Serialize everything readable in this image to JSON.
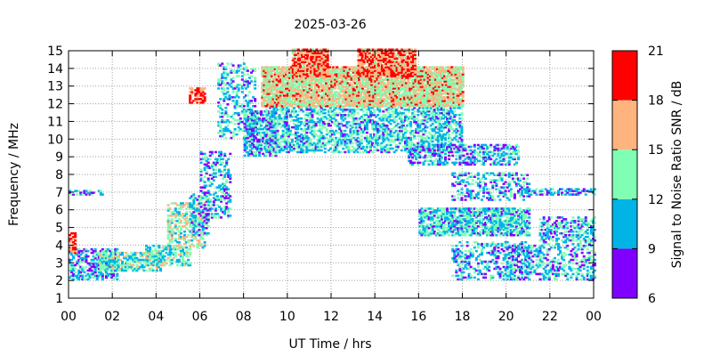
{
  "chart_data": {
    "type": "heatmap",
    "title": "2025-03-26",
    "xlabel": "UT Time / hrs",
    "ylabel": "Frequency / MHz",
    "xlim": [
      0,
      24
    ],
    "ylim": [
      1,
      15
    ],
    "x_ticks": [
      "00",
      "02",
      "04",
      "06",
      "08",
      "10",
      "12",
      "14",
      "16",
      "18",
      "20",
      "22",
      "00"
    ],
    "y_ticks": [
      "1",
      "2",
      "3",
      "4",
      "5",
      "6",
      "7",
      "8",
      "9",
      "10",
      "11",
      "12",
      "13",
      "14",
      "15"
    ],
    "grid": true,
    "colorbar": {
      "label": "Signal to Noise Ratio SNR / dB",
      "ticks": [
        "6",
        "9",
        "12",
        "15",
        "18",
        "21"
      ],
      "bands": [
        {
          "min": 6,
          "max": 9,
          "color": "#8000ff"
        },
        {
          "min": 9,
          "max": 12,
          "color": "#00b4e6"
        },
        {
          "min": 12,
          "max": 15,
          "color": "#80ffb4"
        },
        {
          "min": 15,
          "max": 18,
          "color": "#ffb480"
        },
        {
          "min": 18,
          "max": 21,
          "color": "#ff0000"
        }
      ]
    },
    "regions": [
      {
        "x": [
          0.0,
          2.2
        ],
        "y": [
          2.0,
          3.8
        ],
        "snr": 10.5,
        "density": 0.55
      },
      {
        "x": [
          0.0,
          0.3
        ],
        "y": [
          3.5,
          4.6
        ],
        "snr": 19.5,
        "density": 0.7
      },
      {
        "x": [
          0.0,
          1.5
        ],
        "y": [
          6.8,
          7.0
        ],
        "snr": 10.5,
        "density": 0.5
      },
      {
        "x": [
          1.4,
          4.2
        ],
        "y": [
          2.5,
          3.6
        ],
        "snr": 12.5,
        "density": 0.6
      },
      {
        "x": [
          3.5,
          5.5
        ],
        "y": [
          2.8,
          4.0
        ],
        "snr": 12.5,
        "density": 0.55
      },
      {
        "x": [
          4.5,
          6.2
        ],
        "y": [
          3.8,
          6.3
        ],
        "snr": 14.0,
        "density": 0.45
      },
      {
        "x": [
          5.5,
          6.4
        ],
        "y": [
          4.5,
          6.8
        ],
        "snr": 10.5,
        "density": 0.35
      },
      {
        "x": [
          6.0,
          7.4
        ],
        "y": [
          5.5,
          9.2
        ],
        "snr": 10.5,
        "density": 0.35
      },
      {
        "x": [
          5.5,
          6.2
        ],
        "y": [
          12.0,
          12.8
        ],
        "snr": 19.5,
        "density": 0.6
      },
      {
        "x": [
          6.8,
          8.5
        ],
        "y": [
          10.0,
          14.2
        ],
        "snr": 11.0,
        "density": 0.3
      },
      {
        "x": [
          8.0,
          9.5
        ],
        "y": [
          9.0,
          11.5
        ],
        "snr": 10.5,
        "density": 0.6
      },
      {
        "x": [
          9.0,
          18.0
        ],
        "y": [
          9.2,
          11.8
        ],
        "snr": 11.5,
        "density": 0.5
      },
      {
        "x": [
          8.8,
          18.0
        ],
        "y": [
          11.8,
          14.0
        ],
        "snr": 15.5,
        "density": 0.85
      },
      {
        "x": [
          10.2,
          11.8
        ],
        "y": [
          13.5,
          15.0
        ],
        "snr": 18.0,
        "density": 0.8
      },
      {
        "x": [
          13.2,
          15.8
        ],
        "y": [
          13.5,
          15.0
        ],
        "snr": 18.0,
        "density": 0.8
      },
      {
        "x": [
          15.5,
          20.5
        ],
        "y": [
          8.5,
          9.6
        ],
        "snr": 10.5,
        "density": 0.45
      },
      {
        "x": [
          16.0,
          21.0
        ],
        "y": [
          4.5,
          6.0
        ],
        "snr": 11.5,
        "density": 0.7
      },
      {
        "x": [
          17.5,
          21.0
        ],
        "y": [
          6.5,
          8.0
        ],
        "snr": 10.5,
        "density": 0.35
      },
      {
        "x": [
          17.5,
          21.0
        ],
        "y": [
          2.0,
          4.2
        ],
        "snr": 10.5,
        "density": 0.3
      },
      {
        "x": [
          20.0,
          21.5
        ],
        "y": [
          2.0,
          4.0
        ],
        "snr": 10.5,
        "density": 0.35
      },
      {
        "x": [
          20.5,
          24.0
        ],
        "y": [
          6.8,
          7.1
        ],
        "snr": 10.5,
        "density": 0.5
      },
      {
        "x": [
          21.5,
          24.0
        ],
        "y": [
          2.0,
          5.5
        ],
        "snr": 11.0,
        "density": 0.4
      }
    ]
  }
}
